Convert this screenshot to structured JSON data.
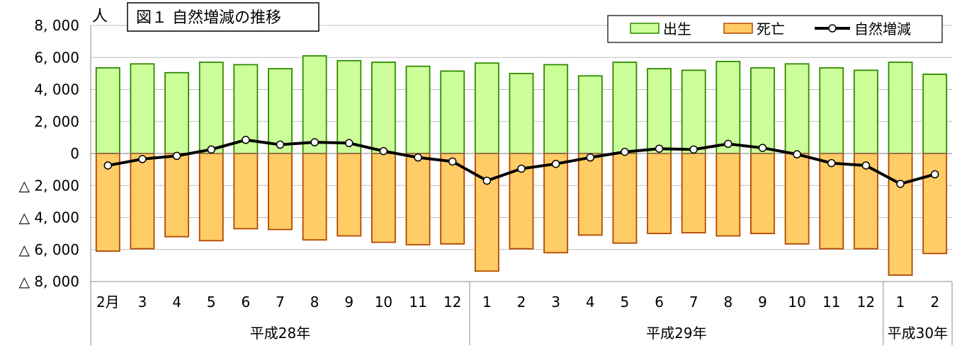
{
  "chart_data": {
    "type": "bar",
    "title": "図１ 自然増減の推移",
    "unit_label": "人",
    "categories": [
      "2月",
      "3",
      "4",
      "5",
      "6",
      "7",
      "8",
      "9",
      "10",
      "11",
      "12",
      "1",
      "2",
      "3",
      "4",
      "5",
      "6",
      "7",
      "8",
      "9",
      "10",
      "11",
      "12",
      "1",
      "2"
    ],
    "year_groups": [
      {
        "label": "平成28年",
        "count": 11
      },
      {
        "label": "平成29年",
        "count": 12
      },
      {
        "label": "平成30年",
        "count": 2
      }
    ],
    "yticks": [
      "8, 000",
      "6, 000",
      "4, 000",
      "2, 000",
      "0",
      "△ 2, 000",
      "△ 4, 000",
      "△ 6, 000",
      "△ 8, 000"
    ],
    "ylim": [
      -8000,
      8000
    ],
    "grid": true,
    "legend_position": "top-right",
    "series": [
      {
        "name": "出生",
        "type": "bar",
        "color": "#ccff99",
        "stroke": "#2e8b00",
        "values": [
          5350,
          5600,
          5050,
          5700,
          5550,
          5300,
          6100,
          5800,
          5700,
          5450,
          5150,
          5650,
          5000,
          5550,
          4850,
          5700,
          5300,
          5200,
          5750,
          5350,
          5600,
          5350,
          5200,
          5700,
          4950
        ]
      },
      {
        "name": "死亡",
        "type": "bar",
        "color": "#ffcc66",
        "stroke": "#b34700",
        "values": [
          -6100,
          -5950,
          -5200,
          -5450,
          -4700,
          -4750,
          -5400,
          -5150,
          -5550,
          -5700,
          -5650,
          -7350,
          -5950,
          -6200,
          -5100,
          -5600,
          -5000,
          -4950,
          -5150,
          -5000,
          -5650,
          -5950,
          -5950,
          -7600,
          -6250
        ]
      },
      {
        "name": "自然増減",
        "type": "line",
        "color": "#000000",
        "values": [
          -750,
          -350,
          -150,
          250,
          850,
          550,
          700,
          650,
          150,
          -250,
          -500,
          -1700,
          -950,
          -650,
          -250,
          100,
          300,
          250,
          600,
          350,
          -50,
          -600,
          -750,
          -1900,
          -1300
        ]
      }
    ]
  }
}
